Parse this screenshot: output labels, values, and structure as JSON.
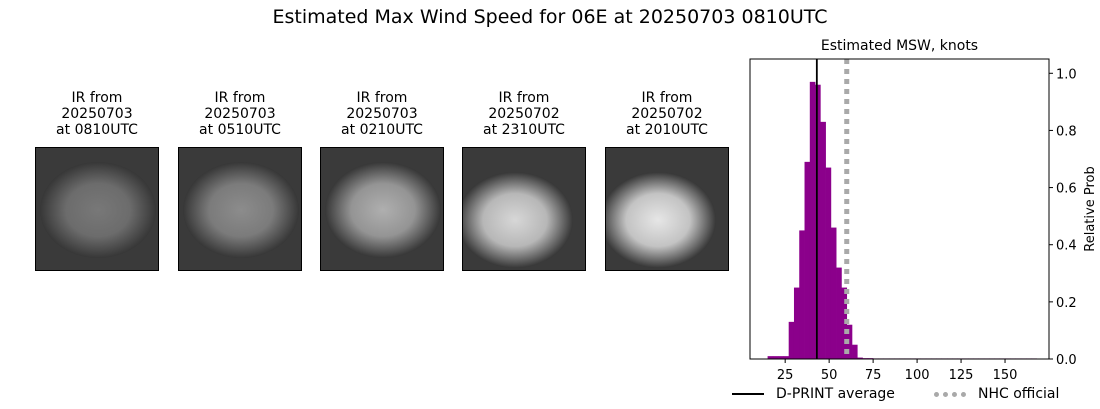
{
  "figure": {
    "title": "Estimated Max Wind Speed for 06E at 20250703 0810UTC"
  },
  "ir_panels": [
    {
      "title": "IR from\n20250703\nat 0810UTC",
      "image": "ir-satellite-image",
      "tone": "darker"
    },
    {
      "title": "IR from\n20250703\nat 0510UTC",
      "image": "ir-satellite-image",
      "tone": "dark"
    },
    {
      "title": "IR from\n20250703\nat 0210UTC",
      "image": "ir-satellite-image",
      "tone": "medium"
    },
    {
      "title": "IR from\n20250702\nat 2310UTC",
      "image": "ir-satellite-image",
      "tone": "bright"
    },
    {
      "title": "IR from\n20250702\nat 2010UTC",
      "image": "ir-satellite-image",
      "tone": "brightest"
    }
  ],
  "chart_data": {
    "type": "bar",
    "title": "Estimated MSW, knots",
    "xlabel": "",
    "ylabel": "Relative Prob",
    "xlim": [
      5,
      175
    ],
    "ylim": [
      0,
      1.05
    ],
    "xticks": [
      25,
      50,
      75,
      100,
      125,
      150
    ],
    "xtick_labels": [
      "25",
      "50",
      "75",
      100,
      "125",
      "150"
    ],
    "yticks": [
      0.0,
      0.2,
      0.4,
      0.6,
      0.8,
      1.0
    ],
    "ytick_labels": [
      "0.0",
      "0.2",
      "0.4",
      "0.6",
      "0.8",
      "1.0"
    ],
    "y_axis_side": "right",
    "bin_width": 3,
    "bins": [
      {
        "x0": 15,
        "value": 0.01
      },
      {
        "x0": 18,
        "value": 0.01
      },
      {
        "x0": 21,
        "value": 0.01
      },
      {
        "x0": 24,
        "value": 0.01
      },
      {
        "x0": 27,
        "value": 0.13
      },
      {
        "x0": 30,
        "value": 0.25
      },
      {
        "x0": 33,
        "value": 0.45
      },
      {
        "x0": 36,
        "value": 0.69
      },
      {
        "x0": 39,
        "value": 0.97
      },
      {
        "x0": 42,
        "value": 0.96
      },
      {
        "x0": 45,
        "value": 0.83
      },
      {
        "x0": 48,
        "value": 0.67
      },
      {
        "x0": 51,
        "value": 0.46
      },
      {
        "x0": 54,
        "value": 0.32
      },
      {
        "x0": 57,
        "value": 0.25
      },
      {
        "x0": 60,
        "value": 0.12
      },
      {
        "x0": 63,
        "value": 0.05
      },
      {
        "x0": 66,
        "value": 0.005
      },
      {
        "x0": 69,
        "value": 0.003
      },
      {
        "x0": 72,
        "value": 0.003
      },
      {
        "x0": 75,
        "value": 0.002
      },
      {
        "x0": 78,
        "value": 0.002
      },
      {
        "x0": 81,
        "value": 0.002
      },
      {
        "x0": 84,
        "value": 0.002
      },
      {
        "x0": 87,
        "value": 0.002
      },
      {
        "x0": 90,
        "value": 0.002
      },
      {
        "x0": 93,
        "value": 0.002
      },
      {
        "x0": 96,
        "value": 0.002
      },
      {
        "x0": 99,
        "value": 0.002
      },
      {
        "x0": 102,
        "value": 0.002
      },
      {
        "x0": 105,
        "value": 0.002
      },
      {
        "x0": 108,
        "value": 0.002
      },
      {
        "x0": 111,
        "value": 0.002
      },
      {
        "x0": 114,
        "value": 0.002
      },
      {
        "x0": 117,
        "value": 0.002
      },
      {
        "x0": 120,
        "value": 0.002
      },
      {
        "x0": 123,
        "value": 0.002
      },
      {
        "x0": 126,
        "value": 0.002
      },
      {
        "x0": 129,
        "value": 0.002
      },
      {
        "x0": 132,
        "value": 0.002
      },
      {
        "x0": 135,
        "value": 0.002
      },
      {
        "x0": 138,
        "value": 0.002
      },
      {
        "x0": 141,
        "value": 0.002
      },
      {
        "x0": 144,
        "value": 0.002
      },
      {
        "x0": 147,
        "value": 0.002
      },
      {
        "x0": 150,
        "value": 0.002
      },
      {
        "x0": 153,
        "value": 0.002
      },
      {
        "x0": 156,
        "value": 0.002
      },
      {
        "x0": 159,
        "value": 0.002
      },
      {
        "x0": 162,
        "value": 0.002
      },
      {
        "x0": 165,
        "value": 0.002
      }
    ],
    "bar_color": "#8b008b",
    "reference_lines": [
      {
        "name": "D-PRINT average",
        "x": 43,
        "color": "#000000",
        "style": "solid"
      },
      {
        "name": "NHC official",
        "x": 60,
        "color": "#a9a9a9",
        "style": "dotted"
      }
    ],
    "legend_position": "bottom"
  }
}
